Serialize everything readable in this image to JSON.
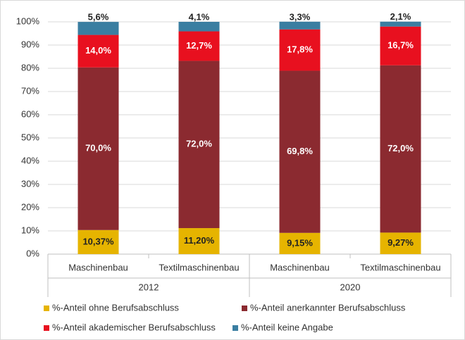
{
  "chart_data": {
    "type": "stacked_bar",
    "categories": [
      "Maschinenbau",
      "Textilmaschinenbau",
      "Maschinenbau",
      "Textilmaschinenbau"
    ],
    "group_labels": [
      "2012",
      "2020"
    ],
    "series": [
      {
        "name": "%-Anteil ohne Berufsabschluss",
        "color": "#e6b400",
        "values": [
          10.37,
          11.2,
          9.15,
          9.27
        ],
        "value_labels": [
          "10,37%",
          "11,20%",
          "9,15%",
          "9,27%"
        ]
      },
      {
        "name": "%-Anteil anerkannter Berufsabschluss",
        "color": "#8b2a30",
        "values": [
          70.0,
          72.0,
          69.8,
          72.0
        ],
        "value_labels": [
          "70,0%",
          "72,0%",
          "69,8%",
          "72,0%"
        ]
      },
      {
        "name": "%-Anteil akademischer Berufsabschluss",
        "color": "#e8101f",
        "values": [
          14.0,
          12.7,
          17.8,
          16.7
        ],
        "value_labels": [
          "14,0%",
          "12,7%",
          "17,8%",
          "16,7%"
        ]
      },
      {
        "name": "%-Anteil keine Angabe",
        "color": "#3a7ea1",
        "values": [
          5.6,
          4.1,
          3.3,
          2.1
        ],
        "value_labels": [
          "5,6%",
          "4,1%",
          "3,3%",
          "2,1%"
        ]
      }
    ],
    "ylim": [
      0,
      100
    ],
    "yticks": [
      {
        "value": 0,
        "label": "0%"
      },
      {
        "value": 10,
        "label": "10%"
      },
      {
        "value": 20,
        "label": "20%"
      },
      {
        "value": 30,
        "label": "30%"
      },
      {
        "value": 40,
        "label": "40%"
      },
      {
        "value": 50,
        "label": "50%"
      },
      {
        "value": 60,
        "label": "60%"
      },
      {
        "value": 70,
        "label": "70%"
      },
      {
        "value": 80,
        "label": "80%"
      },
      {
        "value": 90,
        "label": "90%"
      },
      {
        "value": 100,
        "label": "100%"
      }
    ],
    "grid": true
  }
}
